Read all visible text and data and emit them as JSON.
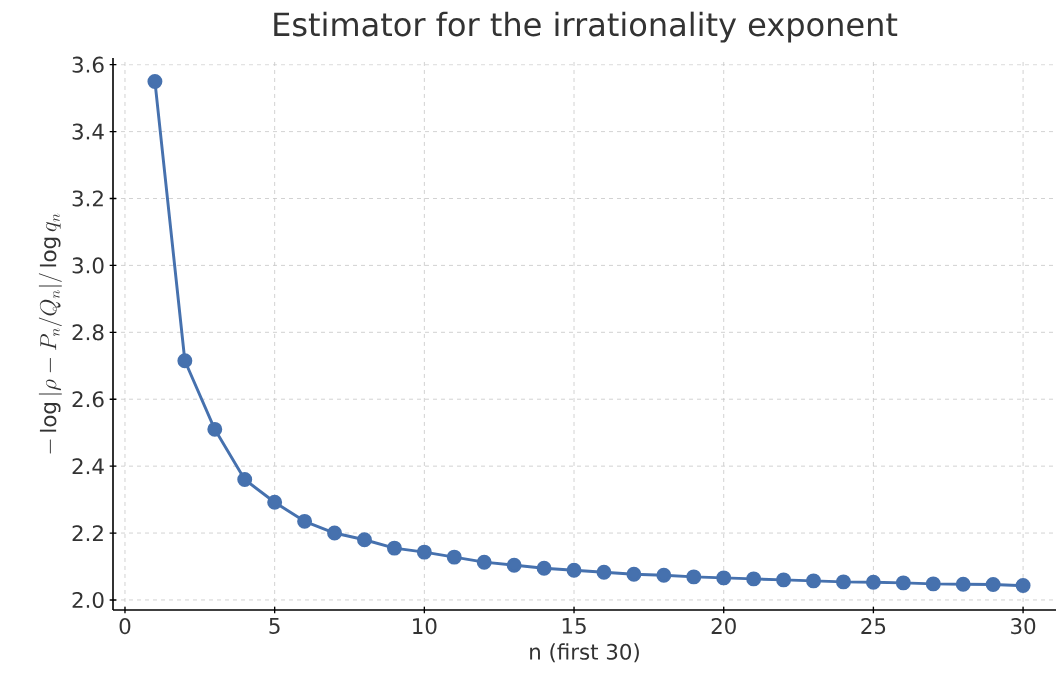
{
  "chart_data": {
    "type": "line",
    "title": "Estimator for the irrationality exponent",
    "xlabel": "n (first 30)",
    "ylabel": "-\\log|\\rho - P_n/Q_n|/\\log q_n",
    "x": [
      1,
      2,
      3,
      4,
      5,
      6,
      7,
      8,
      9,
      10,
      11,
      12,
      13,
      14,
      15,
      16,
      17,
      18,
      19,
      20,
      21,
      22,
      23,
      24,
      25,
      26,
      27,
      28,
      29,
      30
    ],
    "series": [
      {
        "color": "#4671ae",
        "values": [
          3.55,
          2.715,
          2.51,
          2.36,
          2.292,
          2.235,
          2.2,
          2.18,
          2.155,
          2.143,
          2.128,
          2.113,
          2.104,
          2.095,
          2.089,
          2.083,
          2.077,
          2.074,
          2.069,
          2.066,
          2.063,
          2.06,
          2.057,
          2.054,
          2.053,
          2.051,
          2.048,
          2.047,
          2.046,
          2.043
        ]
      }
    ],
    "xlim": [
      -0.4,
      31.1
    ],
    "ylim": [
      1.97,
      3.62
    ],
    "xticks": [
      0,
      5,
      10,
      15,
      20,
      25,
      30
    ],
    "yticks": [
      {
        "value": 2.0,
        "label": "2.0"
      },
      {
        "value": 2.2,
        "label": "2.2"
      },
      {
        "value": 2.4,
        "label": "2.4"
      },
      {
        "value": 2.6,
        "label": "2.6"
      },
      {
        "value": 2.8,
        "label": "2.8"
      },
      {
        "value": 3.0,
        "label": "3.0"
      },
      {
        "value": 3.2,
        "label": "3.2"
      },
      {
        "value": 3.4,
        "label": "3.4"
      },
      {
        "value": 3.6,
        "label": "3.6"
      }
    ],
    "grid": true,
    "marker": "circle",
    "line_style": "solid"
  }
}
